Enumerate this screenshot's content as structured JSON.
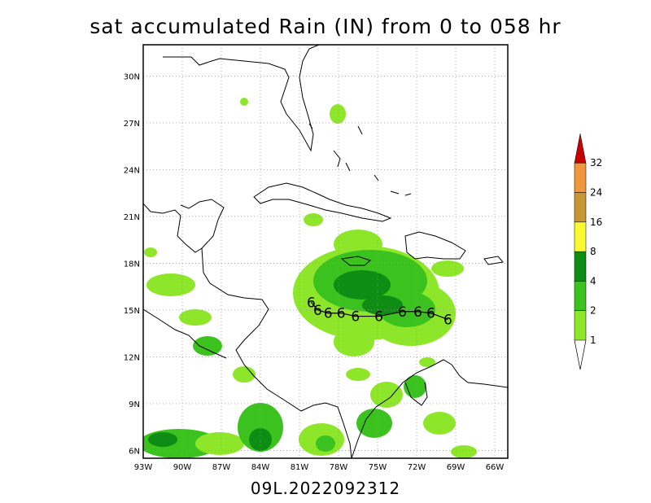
{
  "title": "sat accumulated Rain (IN) from 0 to 058 hr",
  "footer": "09L.2022092312",
  "map": {
    "lon_range": [
      -93,
      -65
    ],
    "lat_range": [
      5.5,
      32
    ],
    "lon_ticks": [
      "93W",
      "90W",
      "87W",
      "84W",
      "81W",
      "78W",
      "75W",
      "72W",
      "69W",
      "66W"
    ],
    "lat_ticks": [
      "6N",
      "9N",
      "12N",
      "15N",
      "18N",
      "21N",
      "24N",
      "27N",
      "30N"
    ],
    "grid": true
  },
  "legend": {
    "levels": [
      {
        "label": "1",
        "color": "#8ee62a"
      },
      {
        "label": "2",
        "color": "#3cc21e"
      },
      {
        "label": "4",
        "color": "#0f8c14"
      },
      {
        "label": "8",
        "color": "#fafa32"
      },
      {
        "label": "16",
        "color": "#c89632"
      },
      {
        "label": "24",
        "color": "#f0963c"
      },
      {
        "label": "32",
        "color": "#c80000"
      }
    ]
  },
  "track": {
    "symbol": "6",
    "points": [
      [
        -80.1,
        15.5
      ],
      [
        -79.6,
        15.0
      ],
      [
        -78.8,
        14.8
      ],
      [
        -77.8,
        14.8
      ],
      [
        -76.7,
        14.6
      ],
      [
        -74.9,
        14.6
      ],
      [
        -73.1,
        14.9
      ],
      [
        -71.9,
        14.9
      ],
      [
        -70.9,
        14.8
      ],
      [
        -69.6,
        14.4
      ]
    ]
  }
}
